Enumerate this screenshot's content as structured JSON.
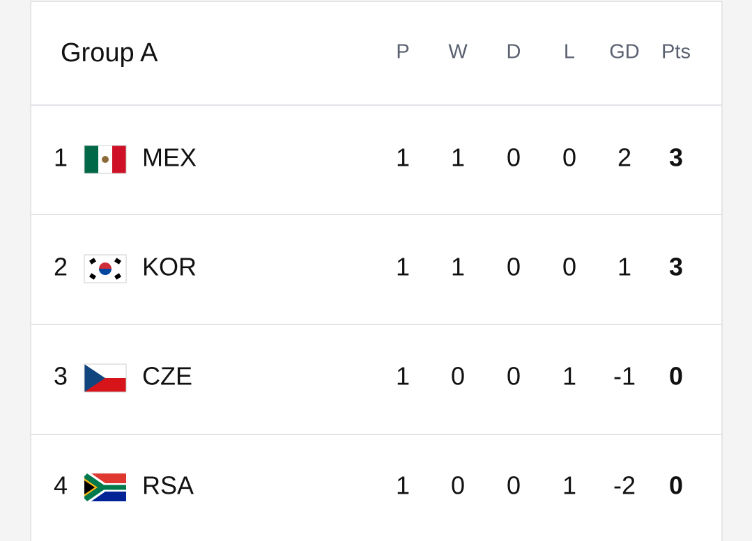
{
  "table": {
    "title": "Group A",
    "columns": [
      "P",
      "W",
      "D",
      "L",
      "GD",
      "Pts"
    ],
    "rows": [
      {
        "rank": 1,
        "team": "MEX",
        "stats": [
          1,
          1,
          0,
          0,
          2,
          3
        ]
      },
      {
        "rank": 2,
        "team": "KOR",
        "stats": [
          1,
          1,
          0,
          0,
          1,
          3
        ]
      },
      {
        "rank": 3,
        "team": "CZE",
        "stats": [
          1,
          0,
          0,
          1,
          -1,
          0
        ]
      },
      {
        "rank": 4,
        "team": "RSA",
        "stats": [
          1,
          0,
          0,
          1,
          -2,
          0
        ]
      }
    ]
  }
}
